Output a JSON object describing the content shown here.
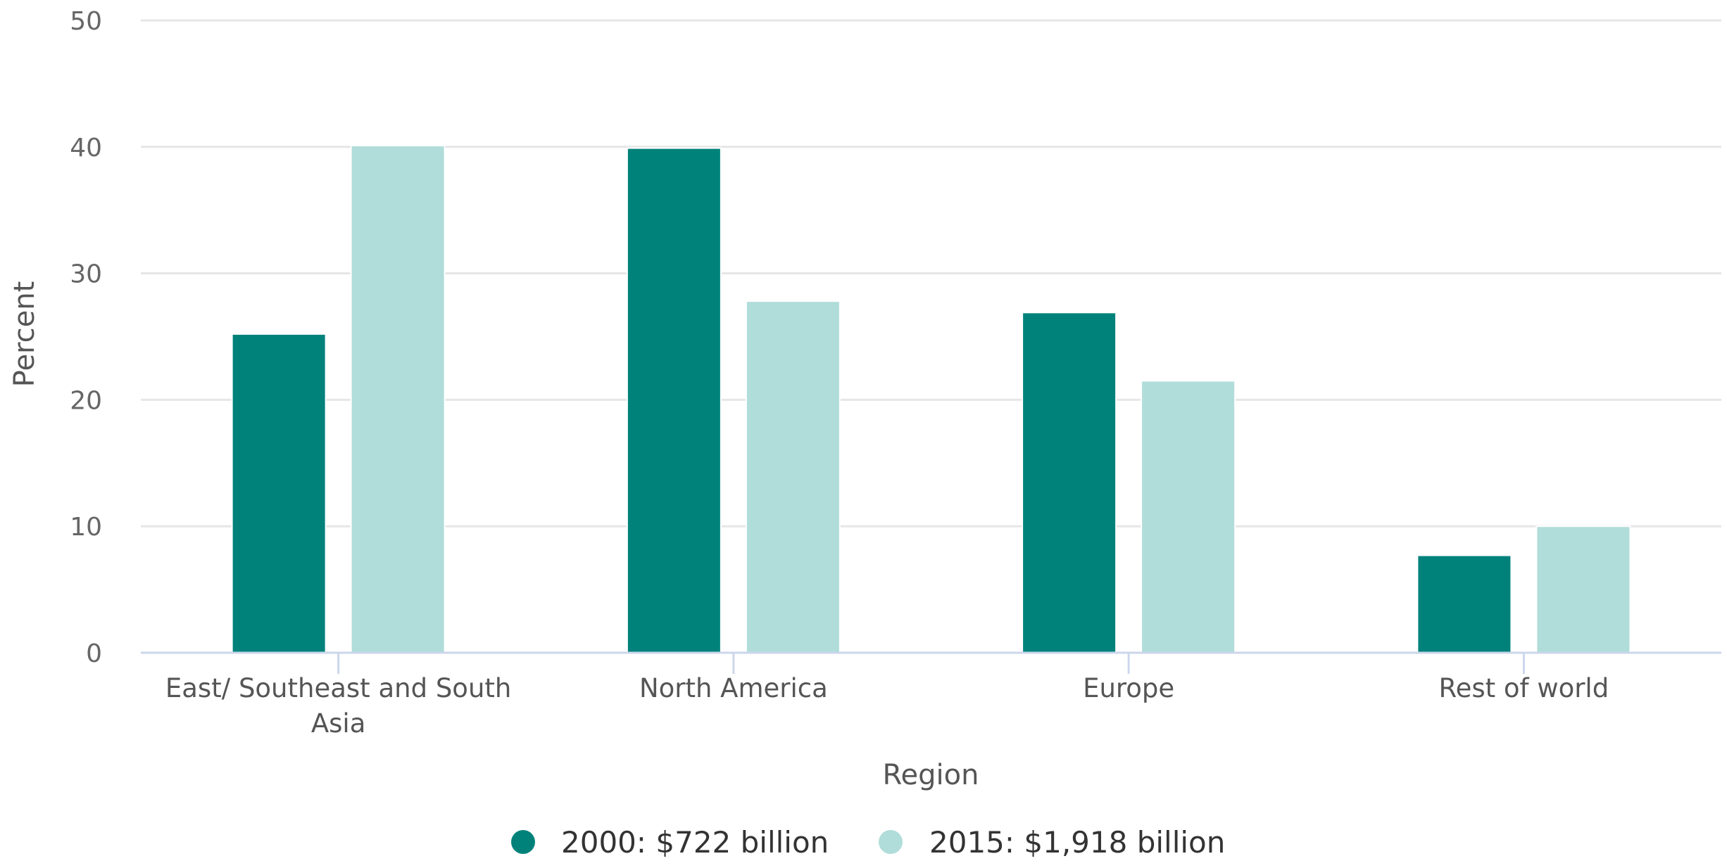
{
  "chart_data": {
    "type": "bar",
    "title": "",
    "xlabel": "Region",
    "ylabel": "Percent",
    "ylim": [
      0,
      50
    ],
    "yticks": [
      0,
      10,
      20,
      30,
      40,
      50
    ],
    "categories": [
      [
        "East/ Southeast and South",
        "Asia"
      ],
      [
        "North America"
      ],
      [
        "Europe"
      ],
      [
        "Rest of world"
      ]
    ],
    "series": [
      {
        "name": "2000: $722 billion",
        "color": "#00827b",
        "values": [
          25.2,
          39.9,
          26.9,
          7.7
        ]
      },
      {
        "name": "2015: $1,918 billion",
        "color": "#b0ddd9",
        "values": [
          40.1,
          27.8,
          21.5,
          10.0
        ]
      }
    ],
    "grid": true,
    "legend_position": "bottom-center"
  }
}
